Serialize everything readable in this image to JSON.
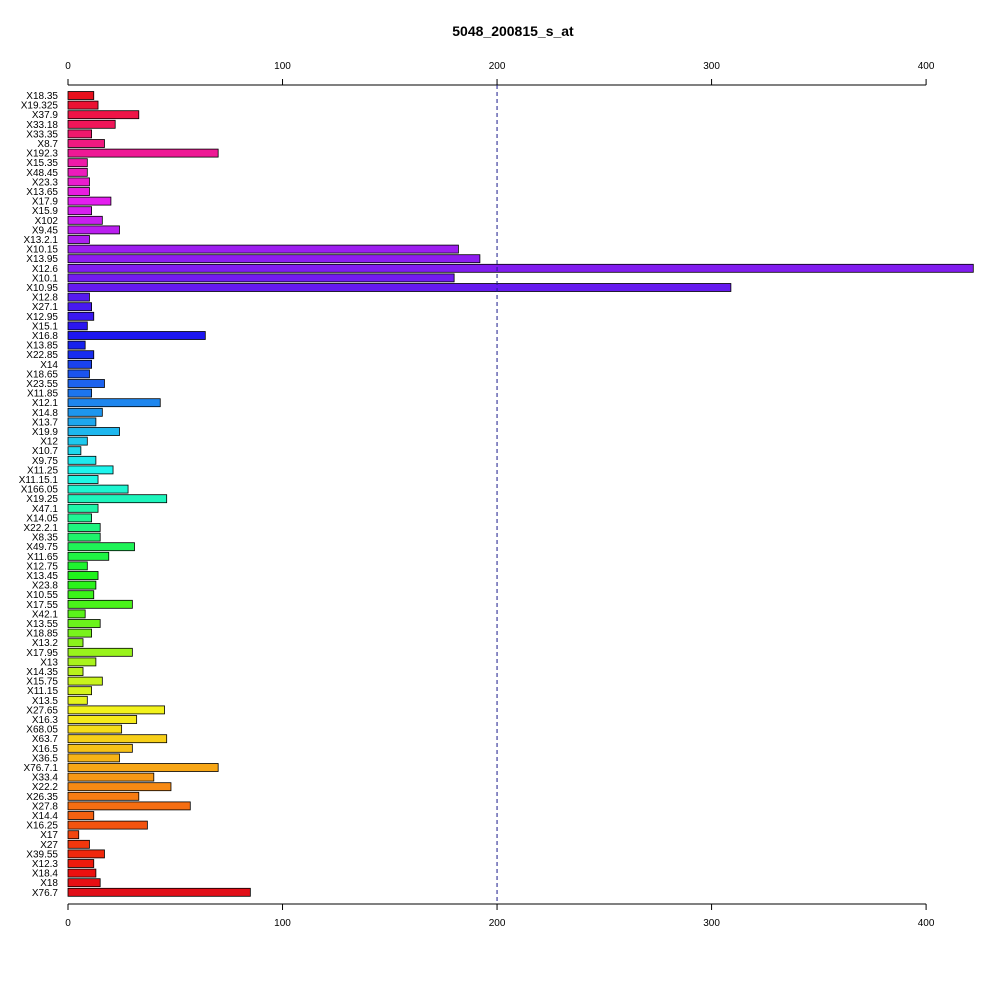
{
  "chart_data": {
    "type": "bar",
    "orientation": "horizontal",
    "title": "5048_200815_s_at",
    "xlabel": "",
    "ylabel": "",
    "xlim": [
      0,
      420
    ],
    "x_ticks": [
      0,
      100,
      200,
      300,
      400
    ],
    "reference_line": {
      "x": 200,
      "style": "dashed",
      "color": "#1a1a8c"
    },
    "axes": [
      "top",
      "bottom"
    ],
    "grid": false,
    "categories": [
      "X18.35",
      "X19.325",
      "X37.9",
      "X33.18",
      "X33.35",
      "X8.7",
      "X192.3",
      "X15.35",
      "X48.45",
      "X23.3",
      "X13.65",
      "X17.9",
      "X15.9",
      "X102",
      "X9.45",
      "X13.2.1",
      "X10.15",
      "X13.95",
      "X12.6",
      "X10.1",
      "X10.95",
      "X12.8",
      "X27.1",
      "X12.95",
      "X15.1",
      "X16.8",
      "X13.85",
      "X22.85",
      "X14",
      "X18.65",
      "X23.55",
      "X11.85",
      "X12.1",
      "X14.8",
      "X13.7",
      "X19.9",
      "X12",
      "X10.7",
      "X9.75",
      "X11.25",
      "X11.15.1",
      "X166.05",
      "X19.25",
      "X47.1",
      "X14.05",
      "X22.2.1",
      "X8.35",
      "X49.75",
      "X11.65",
      "X12.75",
      "X13.45",
      "X23.8",
      "X10.55",
      "X17.55",
      "X42.1",
      "X13.55",
      "X18.85",
      "X13.2",
      "X17.95",
      "X13",
      "X14.35",
      "X15.75",
      "X11.15",
      "X13.5",
      "X27.65",
      "X16.3",
      "X68.05",
      "X63.7",
      "X16.5",
      "X36.5",
      "X76.7.1",
      "X33.4",
      "X22.2",
      "X26.35",
      "X27.8",
      "X14.4",
      "X16.25",
      "X17",
      "X27",
      "X39.55",
      "X12.3",
      "X18.4",
      "X18",
      "X76.7"
    ],
    "values": [
      12,
      14,
      33,
      22,
      11,
      17,
      70,
      9,
      9,
      10,
      10,
      20,
      11,
      16,
      24,
      10,
      182,
      192,
      422,
      180,
      309,
      10,
      11,
      12,
      9,
      64,
      8,
      12,
      11,
      10,
      17,
      11,
      43,
      16,
      13,
      24,
      9,
      6,
      13,
      21,
      14,
      28,
      46,
      14,
      11,
      15,
      15,
      31,
      19,
      9,
      14,
      13,
      12,
      30,
      8,
      15,
      11,
      7,
      30,
      13,
      7,
      16,
      11,
      9,
      45,
      32,
      25,
      46,
      30,
      24,
      70,
      40,
      48,
      33,
      57,
      12,
      37,
      5,
      10,
      17,
      12,
      13,
      15,
      85
    ],
    "colors": [
      "#e8101c",
      "#ec1233",
      "#ef1447",
      "#ef1659",
      "#f0186c",
      "#f01a80",
      "#ee1995",
      "#ee1aa8",
      "#ec1cbb",
      "#ea1cce",
      "#e81de0",
      "#e41eef",
      "#d61fef",
      "#c81fef",
      "#ba1fef",
      "#ab1fef",
      "#9d1eef",
      "#8e1def",
      "#811cef",
      "#731cef",
      "#651aef",
      "#561af0",
      "#4819f0",
      "#3a18f0",
      "#2c17f0",
      "#1d16f0",
      "#1722ee",
      "#182dee",
      "#1a42ee",
      "#1b53ee",
      "#1d63ee",
      "#1c75ee",
      "#1e86ee",
      "#1e96ee",
      "#1ea7ee",
      "#1eb7ee",
      "#1ec8ee",
      "#1ed9ee",
      "#1fe9ee",
      "#1ef5ee",
      "#1ef7e4",
      "#1ef5d0",
      "#1ef5bc",
      "#1ff5a8",
      "#1ff593",
      "#1ff57f",
      "#1ff36b",
      "#1ff357",
      "#1ff343",
      "#1ff32f",
      "#20f31c",
      "#2af31b",
      "#3af31a",
      "#4af31a",
      "#5af31b",
      "#6af31b",
      "#79f31c",
      "#8af31c",
      "#99f31c",
      "#a9f31c",
      "#b9f31c",
      "#c8f31c",
      "#d6f31b",
      "#e5f31c",
      "#f2f21c",
      "#f6ea1b",
      "#f7dd1a",
      "#f7cf19",
      "#f7c118",
      "#f7b317",
      "#f7a616",
      "#f79815",
      "#f78a14",
      "#f77c13",
      "#f66e12",
      "#f56110",
      "#f3530f",
      "#f2450e",
      "#f1370d",
      "#f0280c",
      "#ee1a0b",
      "#ec100f",
      "#e70f14",
      "#e20f18"
    ],
    "bar_stroke": "#000000",
    "ref_line_color": "#1a1a8c"
  }
}
